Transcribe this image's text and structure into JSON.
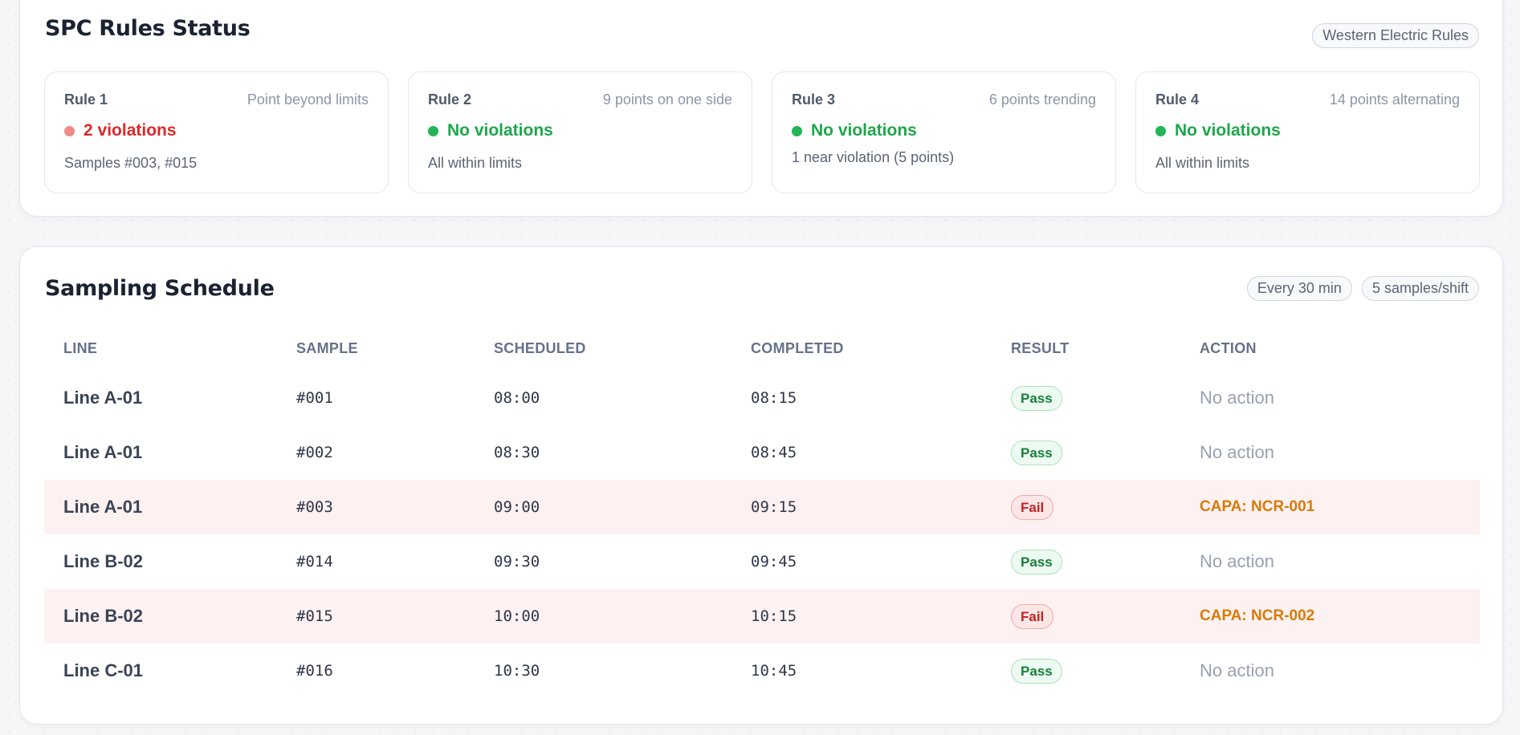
{
  "rules_panel": {
    "title": "SPC Rules Status",
    "ruleset_label": "Western Electric Rules",
    "rules": [
      {
        "name": "Rule 1",
        "description": "Point beyond limits",
        "status": "2 violations",
        "status_type": "violation",
        "note": "Samples #003, #015"
      },
      {
        "name": "Rule 2",
        "description": "9 points on one side",
        "status": "No violations",
        "status_type": "ok",
        "note": "All within limits"
      },
      {
        "name": "Rule 3",
        "description": "6 points trending",
        "status": "No violations",
        "status_type": "ok",
        "note": "1 near violation (5 points)"
      },
      {
        "name": "Rule 4",
        "description": "14 points alternating",
        "status": "No violations",
        "status_type": "ok",
        "note": "All within limits"
      }
    ],
    "colors": {
      "violation": "#dc2828",
      "violation_dot": "#f08a8a",
      "ok": "#1ea64a",
      "ok_dot": "#22b556"
    }
  },
  "schedule_panel": {
    "title": "Sampling Schedule",
    "frequency_label": "Every 30 min",
    "samples_label": "5 samples/shift",
    "columns": [
      "LINE",
      "SAMPLE",
      "SCHEDULED",
      "COMPLETED",
      "RESULT",
      "ACTION"
    ],
    "rows": [
      {
        "line": "Line A-01",
        "sample": "#001",
        "scheduled": "08:00",
        "completed": "08:15",
        "result": "Pass",
        "action": "No action"
      },
      {
        "line": "Line A-01",
        "sample": "#002",
        "scheduled": "08:30",
        "completed": "08:45",
        "result": "Pass",
        "action": "No action"
      },
      {
        "line": "Line A-01",
        "sample": "#003",
        "scheduled": "09:00",
        "completed": "09:15",
        "result": "Fail",
        "action": "CAPA: NCR-001"
      },
      {
        "line": "Line B-02",
        "sample": "#014",
        "scheduled": "09:30",
        "completed": "09:45",
        "result": "Pass",
        "action": "No action"
      },
      {
        "line": "Line B-02",
        "sample": "#015",
        "scheduled": "10:00",
        "completed": "10:15",
        "result": "Fail",
        "action": "CAPA: NCR-002"
      },
      {
        "line": "Line C-01",
        "sample": "#016",
        "scheduled": "10:30",
        "completed": "10:45",
        "result": "Pass",
        "action": "No action"
      }
    ],
    "colors": {
      "fail_row_background": "#fef1f1",
      "pass_badge": "#17803c",
      "fail_badge": "#c52222",
      "capa_action": "#d97a0a"
    }
  }
}
